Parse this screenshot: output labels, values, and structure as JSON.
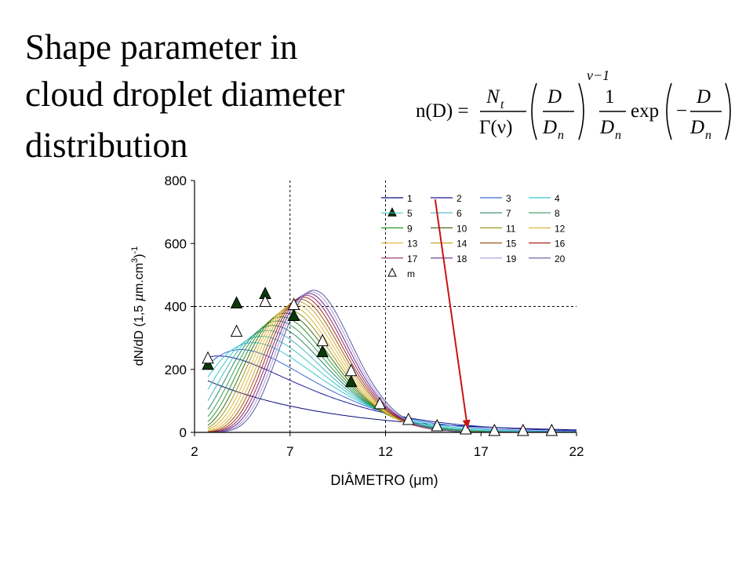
{
  "slide": {
    "title_lines": [
      "Shape parameter in",
      "cloud droplet diameter",
      "distribution"
    ],
    "formula": {
      "lhs": "n(D) =",
      "num1": "N",
      "num1_sub": "t",
      "den1": "Γ(ν)",
      "num2": "D",
      "den2": "D",
      "den2_sub": "n",
      "exponent": "ν−1",
      "num3": "1",
      "den3": "D",
      "den3_sub": "n",
      "exp_word": "exp",
      "minus": "−",
      "num4": "D",
      "den4": "D",
      "den4_sub": "n"
    }
  },
  "chart_data": {
    "type": "line",
    "xlabel": "DIÂMETRO (μm)",
    "ylabel_parts": [
      "dN/dD (1,5 ",
      "μ",
      "m.cm",
      "3",
      ")",
      "-1"
    ],
    "xlim": [
      2,
      22
    ],
    "ylim": [
      0,
      800
    ],
    "xticks": [
      2,
      7,
      12,
      17,
      22
    ],
    "yticks": [
      0,
      200,
      400,
      600,
      800
    ],
    "grid": "dotted vertical at 7 and 12, dotted horizontal at 400",
    "legend_placement": "top-right",
    "legend_columns": 4,
    "series": [
      {
        "name": "1",
        "color": "#0a0a78"
      },
      {
        "name": "2",
        "color": "#1a1a9a"
      },
      {
        "name": "3",
        "color": "#3a6ad0"
      },
      {
        "name": "4",
        "color": "#38c8d8"
      },
      {
        "name": "5",
        "color": "#38c8c0",
        "marker": "filled-triangle"
      },
      {
        "name": "6",
        "color": "#48b8c0"
      },
      {
        "name": "7",
        "color": "#2a8a6a"
      },
      {
        "name": "8",
        "color": "#3a9a5a"
      },
      {
        "name": "9",
        "color": "#2a9a2a"
      },
      {
        "name": "10",
        "color": "#4a6a1a"
      },
      {
        "name": "11",
        "color": "#9a9a1a"
      },
      {
        "name": "12",
        "color": "#d8b83a"
      },
      {
        "name": "13",
        "color": "#e8b848"
      },
      {
        "name": "14",
        "color": "#c8a830"
      },
      {
        "name": "15",
        "color": "#9a5a1a"
      },
      {
        "name": "16",
        "color": "#a8281a"
      },
      {
        "name": "17",
        "color": "#8a2a6a"
      },
      {
        "name": "18",
        "color": "#6a2a8a"
      },
      {
        "name": "19",
        "color": "#b09ad8"
      },
      {
        "name": "20",
        "color": "#5a5aa0"
      },
      {
        "name": "m",
        "color": "#000000",
        "marker": "open-triangle"
      }
    ],
    "marker_points_filled": {
      "x": [
        2.7,
        4.2,
        5.7,
        7.2,
        8.7,
        10.2
      ],
      "y": [
        215,
        410,
        440,
        370,
        255,
        160
      ]
    },
    "marker_points_open": {
      "x": [
        2.7,
        4.2,
        5.7,
        7.2,
        8.7,
        10.2,
        11.7,
        13.2,
        14.7,
        16.2,
        17.7,
        19.2,
        20.7
      ],
      "y": [
        235,
        320,
        415,
        405,
        290,
        195,
        90,
        40,
        20,
        10,
        5,
        5,
        5
      ]
    },
    "arrow": {
      "from": [
        14.6,
        740
      ],
      "to": [
        16.3,
        12
      ],
      "color": "#c81414"
    }
  }
}
